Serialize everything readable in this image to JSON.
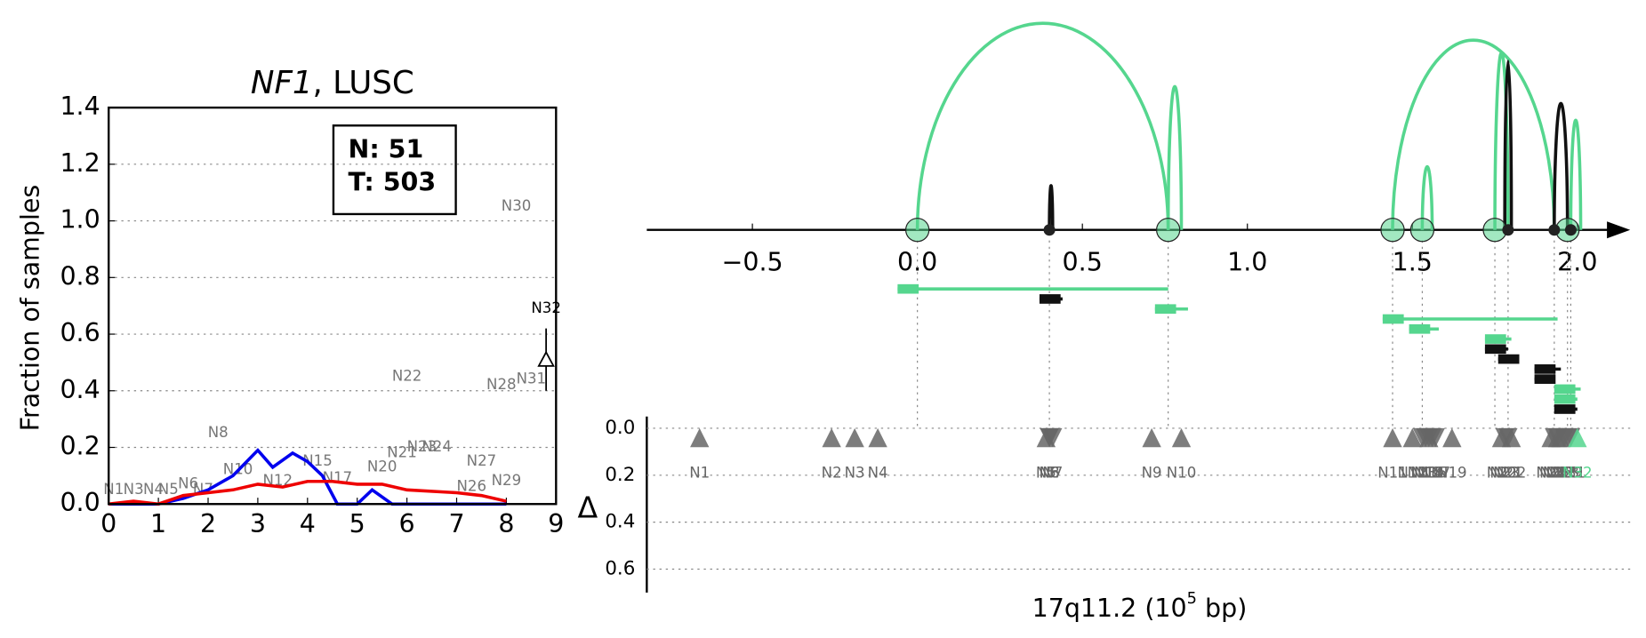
{
  "chart_data": [
    {
      "type": "line",
      "title_parts": [
        "NF1",
        ", LUSC"
      ],
      "ylabel": "Fraction of samples",
      "xlim": [
        0,
        9
      ],
      "xticks": [
        0,
        1,
        2,
        3,
        4,
        5,
        6,
        7,
        8,
        9
      ],
      "ylim": [
        0,
        1.4
      ],
      "yticks": [
        {
          "value": 0,
          "label": "0.0"
        },
        {
          "value": 0.2,
          "label": "0.2"
        },
        {
          "value": 0.4,
          "label": "0.4"
        },
        {
          "value": 0.6,
          "label": "0.6"
        },
        {
          "value": 0.8,
          "label": "0.8"
        },
        {
          "value": 1.0,
          "label": "1.0"
        },
        {
          "value": 1.2,
          "label": "1.2"
        },
        {
          "value": 1.4,
          "label": "1.4"
        }
      ],
      "grid": true,
      "legend_box": [
        "N: 51",
        "T: 503"
      ],
      "series": [
        {
          "color": "#0000ee",
          "x": [
            0,
            1,
            1.5,
            2,
            2.5,
            3,
            3.3,
            3.7,
            4,
            4.3,
            4.6,
            5,
            5.3,
            5.7,
            6,
            8
          ],
          "values": [
            0,
            0,
            0.02,
            0.05,
            0.1,
            0.19,
            0.13,
            0.18,
            0.15,
            0.1,
            0,
            0,
            0.05,
            0,
            0,
            0
          ]
        },
        {
          "color": "#ee0000",
          "x": [
            0,
            0.5,
            1,
            1.5,
            2,
            2.5,
            3,
            3.5,
            4,
            4.5,
            5,
            5.5,
            6,
            7,
            7.5,
            8
          ],
          "values": [
            0,
            0.01,
            0,
            0.03,
            0.04,
            0.05,
            0.07,
            0.06,
            0.08,
            0.08,
            0.07,
            0.07,
            0.05,
            0.04,
            0.03,
            0.01
          ]
        }
      ],
      "point_labels": [
        {
          "text": "N1",
          "x": 0.1,
          "y": 0.05
        },
        {
          "text": "N3",
          "x": 0.5,
          "y": 0.05
        },
        {
          "text": "N4",
          "x": 0.9,
          "y": 0.05
        },
        {
          "text": "N5",
          "x": 1.2,
          "y": 0.05
        },
        {
          "text": "N6",
          "x": 1.6,
          "y": 0.07
        },
        {
          "text": "N7",
          "x": 1.9,
          "y": 0.05
        },
        {
          "text": "N8",
          "x": 2.2,
          "y": 0.25
        },
        {
          "text": "N10",
          "x": 2.6,
          "y": 0.12
        },
        {
          "text": "N12",
          "x": 3.4,
          "y": 0.08
        },
        {
          "text": "N15",
          "x": 4.2,
          "y": 0.15
        },
        {
          "text": "N17",
          "x": 4.6,
          "y": 0.09
        },
        {
          "text": "N20",
          "x": 5.5,
          "y": 0.13
        },
        {
          "text": "N21",
          "x": 5.9,
          "y": 0.18
        },
        {
          "text": "N23",
          "x": 6.3,
          "y": 0.2
        },
        {
          "text": "N24",
          "x": 6.6,
          "y": 0.2
        },
        {
          "text": "N22",
          "x": 6.0,
          "y": 0.45
        },
        {
          "text": "N26",
          "x": 7.3,
          "y": 0.06
        },
        {
          "text": "N27",
          "x": 7.5,
          "y": 0.15
        },
        {
          "text": "N29",
          "x": 8.0,
          "y": 0.08
        },
        {
          "text": "N28",
          "x": 7.9,
          "y": 0.42
        },
        {
          "text": "N31",
          "x": 8.5,
          "y": 0.44
        },
        {
          "text": "N30",
          "x": 8.2,
          "y": 1.05
        },
        {
          "text": "N32",
          "x": 8.8,
          "y": 0.69,
          "color": "#000000"
        }
      ],
      "marker": {
        "x": 8.8,
        "y": 0.51,
        "err": [
          0.4,
          0.62
        ],
        "color": "#000000"
      }
    },
    {
      "type": "arc",
      "xlabel_parts": [
        "17q11.2 (10",
        "5",
        " bp)"
      ],
      "xlim": [
        -0.82,
        2.16
      ],
      "xticks": [
        {
          "value": -0.5,
          "label": "−0.5"
        },
        {
          "value": 0,
          "label": "0.0"
        },
        {
          "value": 0.5,
          "label": "0.5"
        },
        {
          "value": 1.0,
          "label": "1.0"
        },
        {
          "value": 1.5,
          "label": "1.5"
        },
        {
          "value": 2.0,
          "label": "2.0"
        }
      ],
      "arcs": [
        {
          "start": 0.0,
          "end": 0.76,
          "height": 0.98,
          "color": "#55d68e"
        },
        {
          "start": 0.76,
          "end": 0.8,
          "height": 0.68,
          "color": "#55d68e"
        },
        {
          "start": 1.53,
          "end": 1.56,
          "height": 0.3,
          "color": "#55d68e"
        },
        {
          "start": 1.44,
          "end": 1.93,
          "height": 0.9,
          "color": "#55d68e"
        },
        {
          "start": 1.75,
          "end": 1.79,
          "height": 0.84,
          "color": "#55d68e"
        },
        {
          "start": 1.98,
          "end": 2.01,
          "height": 0.52,
          "color": "#55d68e"
        },
        {
          "start": 0.4,
          "end": 0.41,
          "height": 0.21,
          "color": "#111111"
        },
        {
          "start": 1.78,
          "end": 1.8,
          "height": 0.8,
          "color": "#111111"
        },
        {
          "start": 1.93,
          "end": 1.97,
          "height": 0.6,
          "color": "#111111"
        }
      ],
      "breakpoints": [
        {
          "x": 0.0,
          "color": "#55d68e",
          "kind": "circle"
        },
        {
          "x": 0.76,
          "color": "#55d68e",
          "kind": "circle"
        },
        {
          "x": 1.44,
          "color": "#55d68e",
          "kind": "circle"
        },
        {
          "x": 1.53,
          "color": "#55d68e",
          "kind": "circle"
        },
        {
          "x": 1.75,
          "color": "#55d68e",
          "kind": "circle"
        },
        {
          "x": 1.97,
          "color": "#55d68e",
          "kind": "circle"
        },
        {
          "x": 0.4,
          "color": "#222222",
          "kind": "dot"
        },
        {
          "x": 1.79,
          "color": "#222222",
          "kind": "dot"
        },
        {
          "x": 1.93,
          "color": "#222222",
          "kind": "dot"
        },
        {
          "x": 1.98,
          "color": "#222222",
          "kind": "dot"
        }
      ],
      "segments": [
        {
          "start": -0.06,
          "end": 0.76,
          "color": "#55d68e"
        },
        {
          "start": 0.37,
          "end": 0.44,
          "color": "#111111"
        },
        {
          "start": 0.72,
          "end": 0.82,
          "color": "#55d68e"
        },
        {
          "start": 1.41,
          "end": 1.94,
          "color": "#55d68e"
        },
        {
          "start": 1.49,
          "end": 1.58,
          "color": "#55d68e"
        },
        {
          "start": 1.72,
          "end": 1.8,
          "color": "#55d68e"
        },
        {
          "start": 1.72,
          "end": 1.79,
          "color": "#111111"
        },
        {
          "start": 1.76,
          "end": 1.82,
          "color": "#111111"
        },
        {
          "start": 1.87,
          "end": 1.95,
          "color": "#111111"
        },
        {
          "start": 1.87,
          "end": 1.93,
          "color": "#111111"
        },
        {
          "start": 1.93,
          "end": 2.01,
          "color": "#55d68e"
        },
        {
          "start": 1.93,
          "end": 2.0,
          "color": "#55d68e"
        },
        {
          "start": 1.93,
          "end": 2.0,
          "color": "#111111"
        }
      ],
      "ylabel": "Δ",
      "ylim": [
        -0.05,
        0.7
      ],
      "yticks": [
        {
          "value": 0,
          "label": "0.0"
        },
        {
          "value": 0.2,
          "label": "0.2"
        },
        {
          "value": 0.4,
          "label": "0.4"
        },
        {
          "value": 0.6,
          "label": "0.6"
        }
      ],
      "triangles": [
        {
          "name": "N1",
          "x": -0.66,
          "delta": 0.04,
          "dir": "up",
          "color": "#666666"
        },
        {
          "name": "N2",
          "x": -0.26,
          "delta": 0.04,
          "dir": "up",
          "color": "#666666"
        },
        {
          "name": "N3",
          "x": -0.19,
          "delta": 0.04,
          "dir": "up",
          "color": "#666666"
        },
        {
          "name": "N4",
          "x": -0.12,
          "delta": 0.04,
          "dir": "up",
          "color": "#666666"
        },
        {
          "name": "N5",
          "x": 0.39,
          "delta": 0.04,
          "dir": "up",
          "color": "#666666"
        },
        {
          "name": "N6",
          "x": 0.4,
          "delta": 0.04,
          "dir": "down",
          "color": "#666666"
        },
        {
          "name": "N7",
          "x": 0.41,
          "delta": 0.04,
          "dir": "down",
          "color": "#666666"
        },
        {
          "name": "N8",
          "x": 0.4,
          "delta": 0.04,
          "dir": "down",
          "color": "#666666"
        },
        {
          "name": "N9",
          "x": 0.71,
          "delta": 0.04,
          "dir": "up",
          "color": "#666666"
        },
        {
          "name": "N10",
          "x": 0.8,
          "delta": 0.04,
          "dir": "up",
          "color": "#666666"
        },
        {
          "name": "N11",
          "x": 1.44,
          "delta": 0.04,
          "dir": "up",
          "color": "#666666"
        },
        {
          "name": "N12",
          "x": 1.5,
          "delta": 0.04,
          "dir": "up",
          "color": "#666666"
        },
        {
          "name": "N13",
          "x": 1.53,
          "delta": 0.04,
          "dir": "down",
          "color": "#666666"
        },
        {
          "name": "N14",
          "x": 1.55,
          "delta": 0.04,
          "dir": "down",
          "color": "#666666"
        },
        {
          "name": "N15",
          "x": 1.56,
          "delta": 0.04,
          "dir": "down",
          "color": "#666666"
        },
        {
          "name": "N16",
          "x": 1.54,
          "delta": 0.04,
          "dir": "down",
          "color": "#666666"
        },
        {
          "name": "N17",
          "x": 1.57,
          "delta": 0.04,
          "dir": "down",
          "color": "#666666"
        },
        {
          "name": "N18",
          "x": 1.55,
          "delta": 0.04,
          "dir": "up",
          "color": "#666666"
        },
        {
          "name": "N19",
          "x": 1.62,
          "delta": 0.04,
          "dir": "up",
          "color": "#666666"
        },
        {
          "name": "N20",
          "x": 1.77,
          "delta": 0.04,
          "dir": "up",
          "color": "#666666"
        },
        {
          "name": "N21",
          "x": 1.79,
          "delta": 0.04,
          "dir": "down",
          "color": "#666666"
        },
        {
          "name": "N22",
          "x": 1.8,
          "delta": 0.04,
          "dir": "up",
          "color": "#666666"
        },
        {
          "name": "N23",
          "x": 1.78,
          "delta": 0.04,
          "dir": "down",
          "color": "#666666"
        },
        {
          "name": "N24",
          "x": 1.92,
          "delta": 0.04,
          "dir": "up",
          "color": "#666666"
        },
        {
          "name": "N25",
          "x": 1.93,
          "delta": 0.04,
          "dir": "down",
          "color": "#666666"
        },
        {
          "name": "N26",
          "x": 1.94,
          "delta": 0.04,
          "dir": "down",
          "color": "#666666"
        },
        {
          "name": "N27",
          "x": 1.95,
          "delta": 0.04,
          "dir": "up",
          "color": "#666666"
        },
        {
          "name": "N28",
          "x": 1.96,
          "delta": 0.04,
          "dir": "down",
          "color": "#666666"
        },
        {
          "name": "N29",
          "x": 1.97,
          "delta": 0.04,
          "dir": "down",
          "color": "#666666"
        },
        {
          "name": "N30",
          "x": 1.94,
          "delta": 0.04,
          "dir": "up",
          "color": "#666666"
        },
        {
          "name": "N31",
          "x": 1.98,
          "delta": 0.04,
          "dir": "down",
          "color": "#666666"
        },
        {
          "name": "N32",
          "x": 2.0,
          "delta": 0.04,
          "dir": "up",
          "color": "#55d68e"
        }
      ]
    }
  ]
}
